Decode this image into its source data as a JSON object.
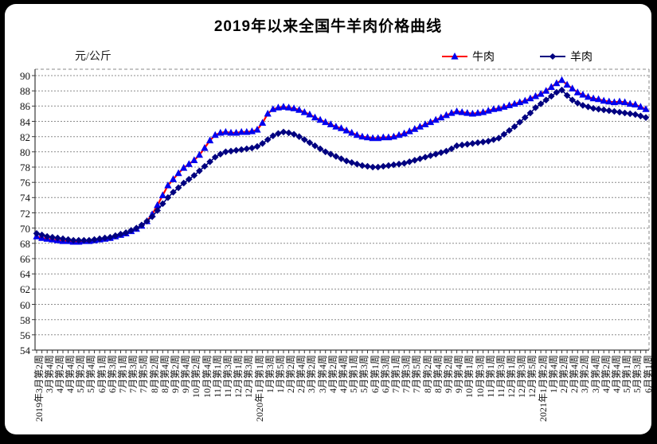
{
  "page": {
    "background": "#000000",
    "card_background": "#ffffff"
  },
  "title": "2019年以来全国牛羊肉价格曲线",
  "y_axis_unit_label": "元/公斤",
  "legend": [
    {
      "label": "牛肉",
      "line_color": "#ff0000",
      "marker": "triangle",
      "marker_color": "#0000ee"
    },
    {
      "label": "羊肉",
      "line_color": "#000080",
      "marker": "diamond",
      "marker_color": "#000080"
    }
  ],
  "chart_data": {
    "type": "line",
    "title": "2019年以来全国牛羊肉价格曲线",
    "ylabel": "元/公斤",
    "ylim": [
      54,
      91
    ],
    "y_ticks": [
      54,
      56,
      58,
      60,
      62,
      64,
      66,
      68,
      70,
      72,
      74,
      76,
      78,
      80,
      82,
      84,
      86,
      88,
      90
    ],
    "grid": "horizontal-dashed",
    "legend_position": "top-right",
    "x_tick_every": 2,
    "x_tick_labels": [
      "2019年3月第2周",
      "3月第4周",
      "4月第2周",
      "4月第4周",
      "5月第2周",
      "5月第4周",
      "6月第1周",
      "6月第3周",
      "7月第1周",
      "7月第3周",
      "7月第5周",
      "8月第2周",
      "8月第4周",
      "9月第2周",
      "9月第4周",
      "10月第2周",
      "10月第4周",
      "11月第1周",
      "11月第3周",
      "12月第1周",
      "12月第3周",
      "2020年1月第1周",
      "1月第3周",
      "1月第5周",
      "2月第2周",
      "2月第4周",
      "3月第2周",
      "3月第4周",
      "4月第2周",
      "4月第4周",
      "5月第1周",
      "5月第3周",
      "6月第1周",
      "6月第3周",
      "7月第1周",
      "7月第3周",
      "7月第5周",
      "8月第2周",
      "8月第4周",
      "9月第2周",
      "9月第4周",
      "10月第1周",
      "10月第3周",
      "11月第1周",
      "11月第3周",
      "12月第1周",
      "12月第3周",
      "12月第5周",
      "2021年1月第2周",
      "1月第4周",
      "2月第2周",
      "2月第4周",
      "3月第2周",
      "3月第4周",
      "4月第2周",
      "4月第4周",
      "5月第1周",
      "5月第3周",
      "6月第1周"
    ],
    "series": [
      {
        "name": "牛肉",
        "line_color": "#ff0000",
        "line_width": 2.2,
        "marker": "triangle",
        "marker_color": "#0000ee",
        "values": [
          68.9,
          68.7,
          68.6,
          68.5,
          68.4,
          68.3,
          68.3,
          68.2,
          68.2,
          68.3,
          68.3,
          68.4,
          68.5,
          68.6,
          68.7,
          68.9,
          69.1,
          69.3,
          69.6,
          69.9,
          70.3,
          70.9,
          71.8,
          73.0,
          74.3,
          75.6,
          76.4,
          77.2,
          77.9,
          78.4,
          78.9,
          79.6,
          80.5,
          81.5,
          82.2,
          82.5,
          82.6,
          82.5,
          82.5,
          82.6,
          82.6,
          82.7,
          82.9,
          83.8,
          85.0,
          85.6,
          85.8,
          85.9,
          85.8,
          85.7,
          85.5,
          85.2,
          84.9,
          84.5,
          84.2,
          83.9,
          83.6,
          83.3,
          83.1,
          82.8,
          82.5,
          82.2,
          82.0,
          81.9,
          81.8,
          81.8,
          81.9,
          81.9,
          82.0,
          82.2,
          82.4,
          82.7,
          83.0,
          83.3,
          83.6,
          83.9,
          84.2,
          84.5,
          84.8,
          85.1,
          85.3,
          85.2,
          85.1,
          85.0,
          85.1,
          85.2,
          85.4,
          85.6,
          85.7,
          85.9,
          86.1,
          86.3,
          86.5,
          86.7,
          87.0,
          87.3,
          87.6,
          88.0,
          88.5,
          89.0,
          89.4,
          88.8,
          88.3,
          87.8,
          87.5,
          87.2,
          87.0,
          86.9,
          86.7,
          86.6,
          86.5,
          86.6,
          86.5,
          86.3,
          86.2,
          85.9,
          85.6
        ]
      },
      {
        "name": "羊肉",
        "line_color": "#000080",
        "line_width": 1.6,
        "marker": "diamond",
        "marker_color": "#000080",
        "values": [
          69.3,
          69.1,
          68.9,
          68.8,
          68.7,
          68.6,
          68.5,
          68.4,
          68.4,
          68.4,
          68.4,
          68.5,
          68.6,
          68.7,
          68.8,
          69.0,
          69.2,
          69.4,
          69.7,
          70.0,
          70.4,
          70.9,
          71.5,
          72.3,
          73.2,
          74.0,
          74.7,
          75.3,
          75.9,
          76.4,
          76.9,
          77.5,
          78.1,
          78.7,
          79.3,
          79.7,
          80.0,
          80.1,
          80.2,
          80.3,
          80.4,
          80.5,
          80.7,
          81.1,
          81.6,
          82.1,
          82.4,
          82.6,
          82.5,
          82.3,
          82.0,
          81.6,
          81.2,
          80.8,
          80.4,
          80.0,
          79.7,
          79.4,
          79.1,
          78.8,
          78.6,
          78.4,
          78.2,
          78.1,
          78.0,
          78.0,
          78.1,
          78.2,
          78.3,
          78.4,
          78.5,
          78.7,
          78.9,
          79.1,
          79.3,
          79.5,
          79.7,
          79.9,
          80.1,
          80.4,
          80.8,
          80.9,
          81.0,
          81.1,
          81.2,
          81.3,
          81.4,
          81.6,
          81.8,
          82.3,
          82.8,
          83.3,
          83.9,
          84.5,
          85.1,
          85.8,
          86.3,
          86.8,
          87.3,
          87.8,
          88.1,
          87.4,
          86.8,
          86.4,
          86.1,
          85.9,
          85.7,
          85.6,
          85.5,
          85.4,
          85.3,
          85.2,
          85.1,
          85.0,
          84.9,
          84.7,
          84.5
        ]
      }
    ]
  }
}
